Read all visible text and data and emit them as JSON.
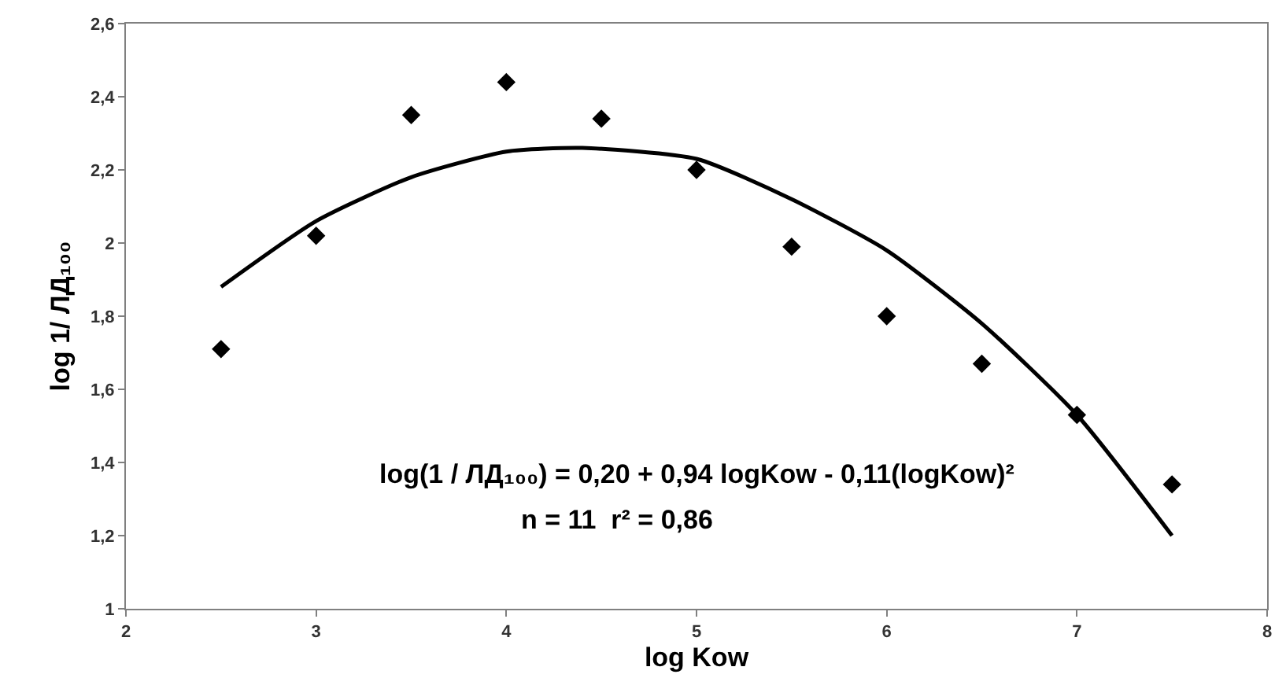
{
  "chart_data": {
    "type": "scatter",
    "xlabel": "log Kow",
    "ylabel": "log 1/ ЛД₁₀₀",
    "x": [
      2.5,
      3,
      3.5,
      4,
      4.5,
      5,
      5.5,
      6,
      6.5,
      7,
      7.5
    ],
    "series": [
      {
        "color": "#000000",
        "marker": "diamond",
        "values": [
          1.71,
          2.02,
          2.35,
          2.44,
          2.34,
          2.2,
          1.99,
          1.8,
          1.67,
          1.53,
          1.34
        ]
      },
      {
        "type": "line",
        "color": "#000000",
        "marker": "none",
        "line_style": "solid",
        "x": [
          2.5,
          3,
          3.5,
          4,
          4.4,
          5,
          5.5,
          6,
          6.5,
          7,
          7.5
        ],
        "values": [
          1.88,
          2.06,
          2.18,
          2.25,
          2.26,
          2.23,
          2.12,
          1.98,
          1.78,
          1.53,
          1.2
        ]
      }
    ],
    "xlim": [
      2,
      8
    ],
    "xticks": [
      2,
      3,
      4,
      5,
      6,
      7,
      8
    ],
    "ylim": [
      1,
      2.6
    ],
    "yticks": [
      1,
      {
        "value": 1.2,
        "label": "1,2"
      },
      {
        "value": 1.4,
        "label": "1,4"
      },
      {
        "value": 1.6,
        "label": "1,6"
      },
      {
        "value": 1.8,
        "label": "1,8"
      },
      2,
      {
        "value": 2.2,
        "label": "2,2"
      },
      {
        "value": 2.4,
        "label": "2,4"
      },
      {
        "value": 2.6,
        "label": "2,6"
      }
    ],
    "grid": false,
    "annotations": [
      "log(1 / ЛД₁₀₀) = 0,20 + 0,94 logKow - 0,11(logKow)²",
      "n = 11  r² = 0,86"
    ]
  }
}
